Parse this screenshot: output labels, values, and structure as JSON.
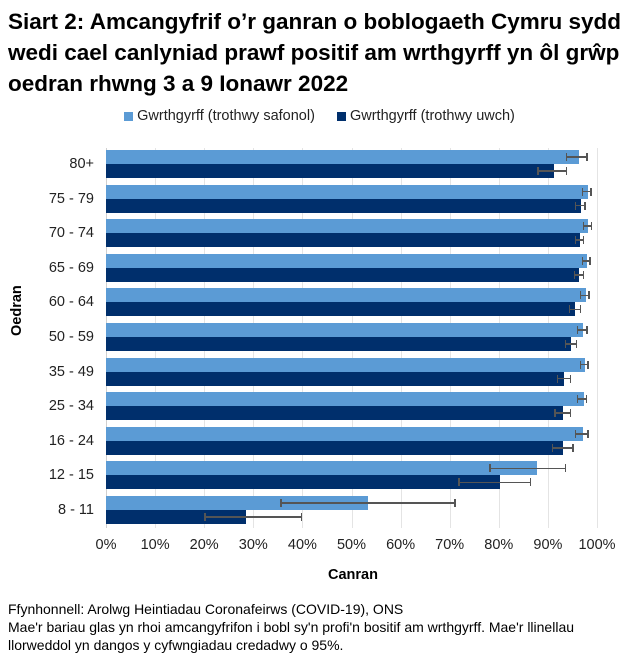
{
  "title": "Siart 2: Amcangyfrif o’r ganran o boblogaeth Cymru sydd wedi cael canlyniad prawf positif am wrthgyrff yn ôl grŵp oedran rhwng 3 a 9 Ionawr 2022",
  "legend": [
    {
      "label": "Gwrthgyrff (trothwy safonol)",
      "color": "#5B9BD5"
    },
    {
      "label": "Gwrthgyrff (trothwy uwch)",
      "color": "#002F6C"
    }
  ],
  "footer": {
    "source": "Ffynhonnell: Arolwg Heintiadau Coronafeirws (COVID-19), ONS",
    "note": "Mae'r bariau glas yn rhoi amcangyfrifon i bobl sy'n profi'n bositif am wrthgyrff. Mae'r llinellau llorweddol yn dangos y cyfwngiadau credadwy o 95%."
  },
  "chart_data": {
    "type": "bar",
    "orientation": "horizontal",
    "title": "Siart 2: Amcangyfrif o’r ganran o boblogaeth Cymru sydd wedi cael canlyniad prawf positif am wrthgyrff yn ôl grŵp oedran rhwng 3 a 9 Ionawr 2022",
    "xlabel": "Canran",
    "ylabel": "Oedran",
    "xlim": [
      0,
      100
    ],
    "x_ticks": [
      "0%",
      "10%",
      "20%",
      "30%",
      "40%",
      "50%",
      "60%",
      "70%",
      "80%",
      "90%",
      "100%"
    ],
    "grid": true,
    "legend_position": "top",
    "categories": [
      "80+",
      "75 - 79",
      "70 - 74",
      "65 - 69",
      "60 - 64",
      "50 - 59",
      "35 - 49",
      "25 - 34",
      "16 - 24",
      "12 - 15",
      "8 - 11"
    ],
    "series": [
      {
        "name": "Gwrthgyrff (trothwy safonol)",
        "color": "#5B9BD5",
        "values": [
          96.3,
          98.1,
          98.1,
          97.9,
          97.7,
          97.1,
          97.5,
          97.3,
          97.1,
          87.8,
          53.4
        ],
        "ci_lower": [
          93.8,
          97.0,
          97.2,
          97.0,
          96.6,
          96.0,
          96.6,
          96.0,
          95.6,
          78.2,
          35.6
        ],
        "ci_upper": [
          98.0,
          98.8,
          98.9,
          98.6,
          98.4,
          98.0,
          98.2,
          97.9,
          98.2,
          93.6,
          71.1
        ]
      },
      {
        "name": "Gwrthgyrff (trothwy uwch)",
        "color": "#002F6C",
        "values": [
          91.3,
          96.7,
          96.5,
          96.3,
          95.5,
          94.7,
          93.3,
          93.1,
          93.1,
          80.3,
          28.5
        ],
        "ci_lower": [
          88.0,
          95.6,
          95.6,
          95.4,
          94.4,
          93.6,
          92.0,
          91.4,
          90.9,
          71.9,
          20.2
        ],
        "ci_upper": [
          93.8,
          97.6,
          97.2,
          97.2,
          96.6,
          95.8,
          94.6,
          94.6,
          95.1,
          86.5,
          39.8
        ]
      }
    ]
  }
}
